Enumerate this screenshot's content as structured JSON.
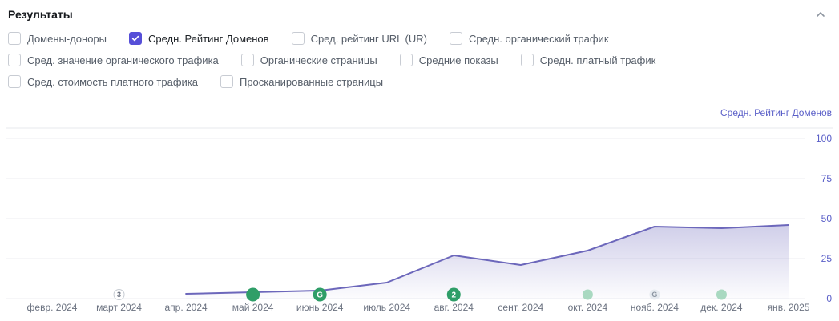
{
  "header": {
    "title": "Результаты"
  },
  "filters": {
    "rows": [
      [
        {
          "label": "Домены-доноры",
          "checked": false
        },
        {
          "label": "Средн. Рейтинг Доменов",
          "checked": true
        },
        {
          "label": "Сред. рейтинг URL (UR)",
          "checked": false
        },
        {
          "label": "Средн. органический трафик",
          "checked": false
        }
      ],
      [
        {
          "label": "Сред. значение органического трафика",
          "checked": false
        },
        {
          "label": "Органические страницы",
          "checked": false
        },
        {
          "label": "Средние показы",
          "checked": false
        },
        {
          "label": "Средн. платный трафик",
          "checked": false
        }
      ],
      [
        {
          "label": "Сред. стоимость платного трафика",
          "checked": false
        },
        {
          "label": "Просканированные страницы",
          "checked": false
        }
      ]
    ]
  },
  "chart_data": {
    "type": "area",
    "title": "Средн. Рейтинг Доменов",
    "x": [
      "февр. 2024",
      "март 2024",
      "апр. 2024",
      "май 2024",
      "июнь 2024",
      "июль 2024",
      "авг. 2024",
      "сент. 2024",
      "окт. 2024",
      "нояб. 2024",
      "дек. 2024",
      "янв. 2025"
    ],
    "series": [
      {
        "name": "Средн. Рейтинг Доменов",
        "values": [
          null,
          null,
          3,
          4,
          5,
          10,
          27,
          21,
          30,
          45,
          44,
          46
        ]
      }
    ],
    "ylim": [
      0,
      100
    ],
    "yticks": [
      100,
      75,
      50,
      25,
      0
    ],
    "grid": true,
    "legend_position": "top-right"
  },
  "axis_markers": [
    {
      "month": "март 2024",
      "month_index": 1,
      "text": "3",
      "variant": "outline"
    },
    {
      "month": "май 2024",
      "month_index": 3,
      "text": "",
      "variant": "solid"
    },
    {
      "month": "июнь 2024",
      "month_index": 4,
      "text": "G",
      "variant": "solid"
    },
    {
      "month": "авг. 2024",
      "month_index": 6,
      "text": "2",
      "variant": "solid"
    },
    {
      "month": "окт. 2024",
      "month_index": 8,
      "text": "",
      "variant": "faded"
    },
    {
      "month": "нояб. 2024",
      "month_index": 9,
      "text": "G",
      "variant": "ghost"
    },
    {
      "month": "дек. 2024",
      "month_index": 10,
      "text": "",
      "variant": "faded"
    }
  ],
  "colors": {
    "accent": "#564fd8",
    "axis_label": "#5a5fc8",
    "line": "#6c67bb",
    "grid": "#eceef1",
    "divider": "#e7e9ec",
    "marker_green": "#2f9e68",
    "marker_faded": "#a9d9c1",
    "marker_ghost_bg": "#e6ebf0",
    "marker_ghost_text": "#8b95a1",
    "text_muted": "#6b7280"
  }
}
